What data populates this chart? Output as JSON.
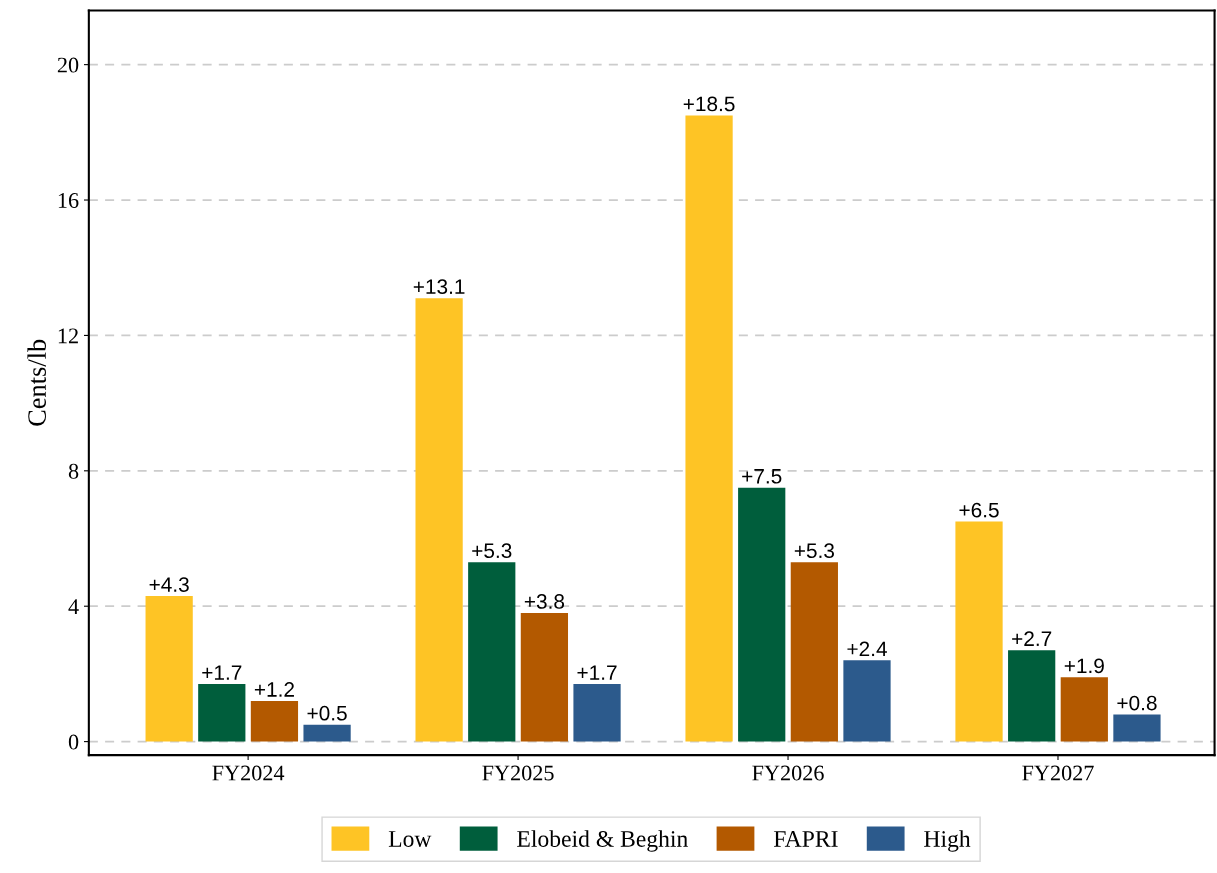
{
  "chart_data": {
    "type": "bar",
    "ylabel": "Cents/lb",
    "categories": [
      "FY2024",
      "FY2025",
      "FY2026",
      "FY2027"
    ],
    "series": [
      {
        "name": "Low",
        "color": "#fec425",
        "values": [
          4.3,
          13.1,
          18.5,
          6.5
        ],
        "value_labels": [
          "+4.3",
          "+13.1",
          "+18.5",
          "+6.5"
        ]
      },
      {
        "name": "Elobeid & Beghin",
        "color": "#005e3c",
        "values": [
          1.7,
          5.3,
          7.5,
          2.7
        ],
        "value_labels": [
          "+1.7",
          "+5.3",
          "+7.5",
          "+2.7"
        ]
      },
      {
        "name": "FAPRI",
        "color": "#b35900",
        "values": [
          1.2,
          3.8,
          5.3,
          1.9
        ],
        "value_labels": [
          "+1.2",
          "+3.8",
          "+5.3",
          "+1.9"
        ]
      },
      {
        "name": "High",
        "color": "#2c5a8c",
        "values": [
          0.5,
          1.7,
          2.4,
          0.8
        ],
        "value_labels": [
          "+0.5",
          "+1.7",
          "+2.4",
          "+0.8"
        ]
      }
    ],
    "ylim": [
      -0.4,
      21.6
    ],
    "yticks": [
      0,
      4,
      8,
      12,
      16,
      20
    ],
    "grid": "y",
    "legend": "bottom"
  }
}
